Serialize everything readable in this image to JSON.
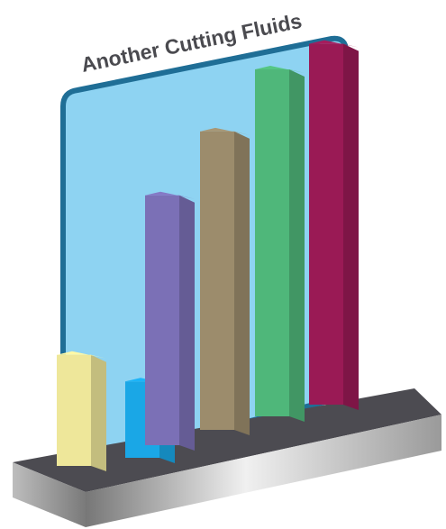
{
  "chart_data": {
    "type": "bar",
    "title": "Another Cutting Fluids",
    "categories": [
      "",
      "",
      "",
      "",
      "",
      ""
    ],
    "values": [
      16,
      11,
      36,
      43,
      50,
      52
    ],
    "colors": [
      "#eee79a",
      "#1aa7e6",
      "#7b70b6",
      "#9c8c6c",
      "#4fb77a",
      "#9a1a55"
    ],
    "ylim": [
      0,
      55
    ],
    "grid": false,
    "legend": "none",
    "style": "3d-bars-on-platform",
    "backdrop_color": "#8ed3f2",
    "backdrop_border_color": "#1f6e96",
    "platform_top_color": "#4c4b51"
  }
}
